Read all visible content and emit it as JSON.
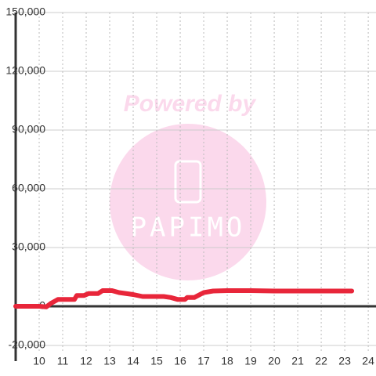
{
  "chart_data": {
    "type": "line",
    "watermark": {
      "text": "Powered by",
      "logo": "PAPIMO"
    },
    "x": [
      9,
      10,
      10.3,
      10.5,
      10.8,
      11.5,
      11.6,
      11.9,
      12.1,
      12.5,
      12.7,
      13.1,
      13.4,
      14,
      14.4,
      15.3,
      15.6,
      15.9,
      16.2,
      16.3,
      16.6,
      17,
      17.4,
      18,
      19,
      20,
      23.3
    ],
    "series": [
      {
        "color": "#e8263a",
        "values": [
          0,
          0,
          -300,
          1500,
          3500,
          3500,
          5500,
          5500,
          6500,
          6500,
          8000,
          8000,
          7000,
          6000,
          5000,
          5000,
          4500,
          3500,
          3500,
          4500,
          4500,
          7000,
          7800,
          8000,
          8000,
          7800,
          7800
        ]
      }
    ],
    "xlim": [
      9,
      24.33
    ],
    "xticks": [
      10,
      11,
      12,
      13,
      14,
      15,
      16,
      17,
      18,
      19,
      20,
      21,
      22,
      23,
      24
    ],
    "ylim": [
      -20000,
      150000
    ],
    "yticks": [
      {
        "value": -20000,
        "label": "-20,000"
      },
      0,
      {
        "value": 30000,
        "label": "30,000"
      },
      {
        "value": 60000,
        "label": "60,000"
      },
      {
        "value": 90000,
        "label": "90,000"
      },
      {
        "value": 120000,
        "label": "120,000"
      },
      {
        "value": 150000,
        "label": "150,000"
      }
    ],
    "grid": true
  }
}
